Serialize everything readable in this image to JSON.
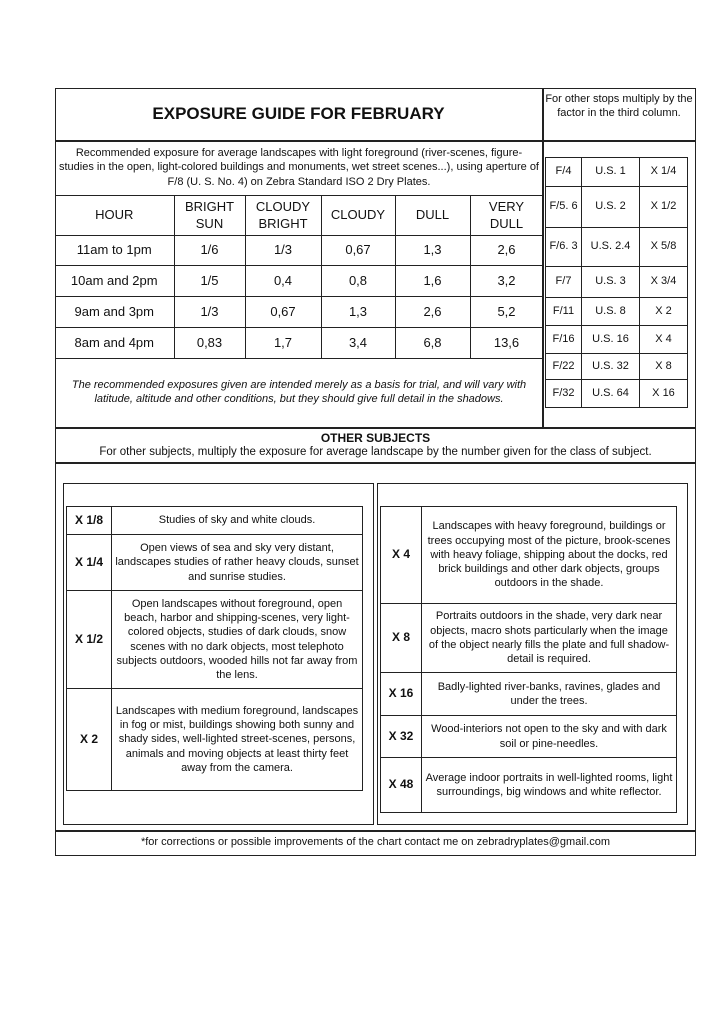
{
  "title": "EXPOSURE GUIDE FOR FEBRUARY",
  "stops_note": "For other stops multiply by the factor in the third column.",
  "intro": "Recommended exposure for average landscapes with light foreground (river-scenes, figure- studies in the open, light-colored buildings and monuments, wet street scenes...), using aperture of F/8 (U. S. No. 4) on Zebra Standard ISO 2 Dry Plates.",
  "main_table": {
    "headers": [
      "HOUR",
      "BRIGHT SUN",
      "CLOUDY BRIGHT",
      "CLOUDY",
      "DULL",
      "VERY DULL"
    ],
    "rows": [
      [
        "11am to 1pm",
        "1/6",
        "1/3",
        "0,67",
        "1,3",
        "2,6"
      ],
      [
        "10am and 2pm",
        "1/5",
        "0,4",
        "0,8",
        "1,6",
        "3,2"
      ],
      [
        "9am and 3pm",
        "1/3",
        "0,67",
        "1,3",
        "2,6",
        "5,2"
      ],
      [
        "8am and 4pm",
        "0,83",
        "1,7",
        "3,4",
        "6,8",
        "13,6"
      ]
    ]
  },
  "disclaimer": "The recommended exposures given are intended merely as a basis for trial, and will vary with latitude, altitude and other conditions, but they should give full detail in the shadows.",
  "stops_table": [
    [
      "F/4",
      "U.S. 1",
      "X 1/4"
    ],
    [
      "F/5. 6",
      "U.S. 2",
      "X 1/2"
    ],
    [
      "F/6. 3",
      "U.S. 2.4",
      "X 5/8"
    ],
    [
      "F/7",
      "U.S. 3",
      "X 3/4"
    ],
    [
      "F/11",
      "U.S. 8",
      "X 2"
    ],
    [
      "F/16",
      "U.S. 16",
      "X 4"
    ],
    [
      "F/22",
      "U.S. 32",
      "X 8"
    ],
    [
      "F/32",
      "U.S. 64",
      "X 16"
    ]
  ],
  "other_subjects": {
    "heading": "OTHER SUBJECTS",
    "subtitle": "For other subjects, multiply the exposure for average landscape by the number given for the class of subject.",
    "left": [
      {
        "factor": "X 1/8",
        "text": "Studies of sky and white clouds."
      },
      {
        "factor": "X 1/4",
        "text": "Open views of sea and sky very distant, landscapes studies of rather heavy clouds, sunset and sunrise studies."
      },
      {
        "factor": "X 1/2",
        "text": "Open landscapes without foreground, open beach, harbor and shipping-scenes, very light-colored objects, studies of dark clouds, snow scenes with no dark objects, most telephoto subjects outdoors, wooded hills not far away from the lens."
      },
      {
        "factor": "X 2",
        "text": "Landscapes with medium foreground, landscapes in fog or mist, buildings showing both sunny and shady sides, well-lighted street-scenes, persons, animals and moving objects at least thirty feet away from the camera."
      }
    ],
    "right": [
      {
        "factor": "X 4",
        "text": "Landscapes with heavy foreground, buildings or trees occupying most of the picture, brook-scenes with heavy foliage, shipping about the docks, red brick buildings and other dark objects, groups outdoors in the shade."
      },
      {
        "factor": "X 8",
        "text": "Portraits outdoors in the shade, very dark near objects, macro shots particularly when the image of the object nearly fills the plate and full shadow-detail is required."
      },
      {
        "factor": "X 16",
        "text": "Badly-lighted river-banks, ravines, glades and under the trees."
      },
      {
        "factor": "X 32",
        "text": "Wood-interiors not open to the sky and with dark soil or pine-needles."
      },
      {
        "factor": "X 48",
        "text": "Average indoor portraits in well-lighted rooms, light surroundings, big windows and white reflector."
      }
    ]
  },
  "footer": "*for corrections or possible improvements of the chart contact me on zebradryplates@gmail.com"
}
